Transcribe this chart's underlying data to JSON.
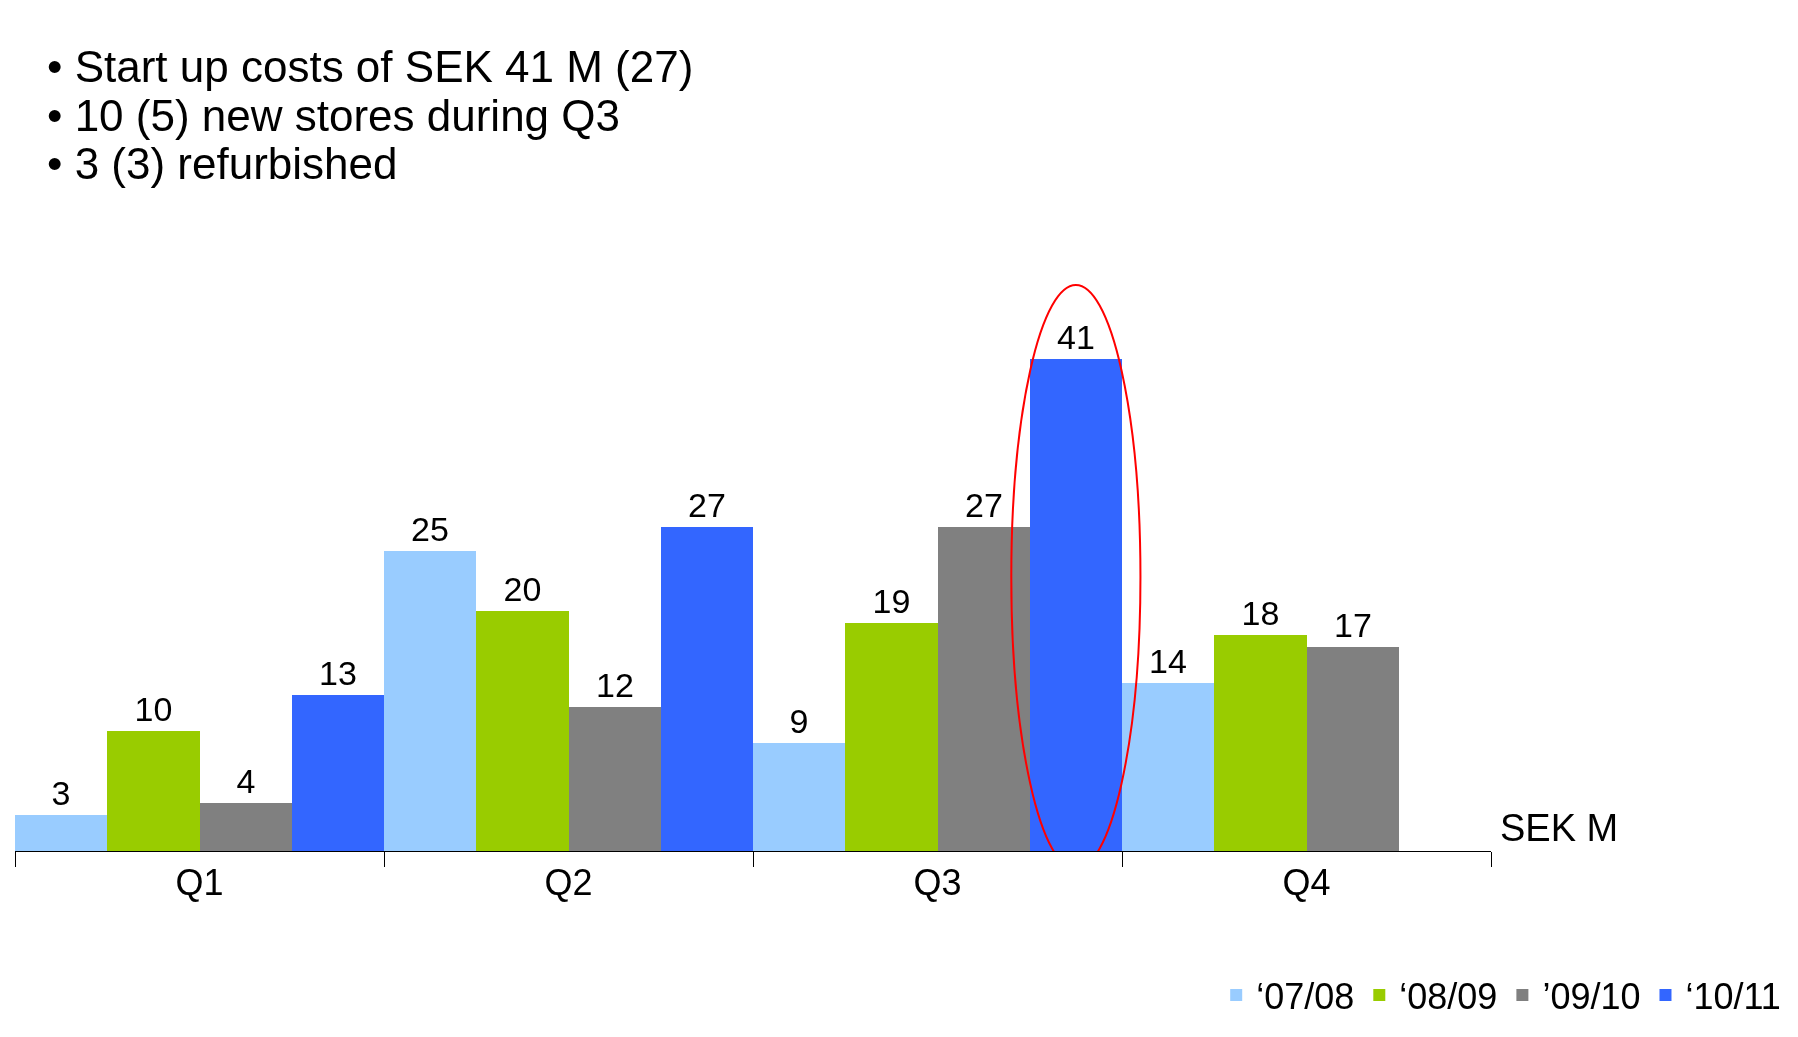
{
  "chart_data": {
    "type": "bar",
    "categories": [
      "Q1",
      "Q2",
      "Q3",
      "Q4"
    ],
    "series": [
      {
        "name": "‘07/08",
        "color": "#99ccff",
        "values": [
          3,
          25,
          9,
          14
        ]
      },
      {
        "name": "‘08/09",
        "color": "#99cc00",
        "values": [
          10,
          20,
          19,
          18
        ]
      },
      {
        "name": "’09/10",
        "color": "#808080",
        "values": [
          4,
          12,
          27,
          17
        ]
      },
      {
        "name": "‘10/11",
        "color": "#3366ff",
        "values": [
          13,
          27,
          41,
          null
        ]
      }
    ],
    "annotations": [
      "• Start up costs of SEK 41 M (27)",
      "• 10 (5) new stores during Q3",
      "• 3 (3) refurbished",
      "SEK M"
    ],
    "data_labels": true,
    "legend": "bottom right"
  }
}
